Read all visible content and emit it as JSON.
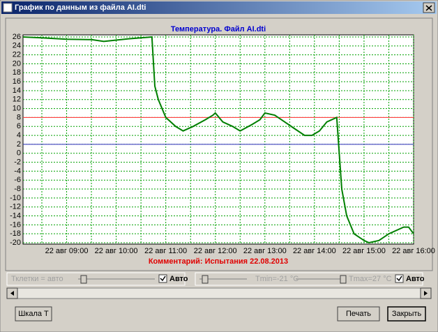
{
  "window": {
    "title": "График по данным из файла AI.dti"
  },
  "chart_data": {
    "type": "line",
    "title": "Температура. Файл AI.dti",
    "comment": "Комментарий: Испытания 22.08.2013",
    "x": [
      8.12,
      8.5,
      9.0,
      9.5,
      9.75,
      10.0,
      10.25,
      10.5,
      10.72,
      10.78,
      10.85,
      11.0,
      11.2,
      11.35,
      11.55,
      11.8,
      11.95,
      12.0,
      12.15,
      12.35,
      12.5,
      12.75,
      12.9,
      13.0,
      13.2,
      13.4,
      13.6,
      13.8,
      13.95,
      14.1,
      14.25,
      14.45,
      14.5,
      14.55,
      14.65,
      14.8,
      15.0,
      15.1,
      15.3,
      15.5,
      15.8,
      15.9,
      16.0
    ],
    "series": [
      {
        "name": "Температура",
        "color": "#007f00",
        "values": [
          26,
          25.8,
          25.5,
          25.4,
          25.0,
          25.3,
          25.6,
          25.8,
          26,
          15,
          12,
          8,
          6,
          5,
          6,
          7.5,
          8.5,
          9,
          7,
          6,
          5,
          6.5,
          7.5,
          9,
          8.5,
          7,
          5.5,
          4,
          4,
          5,
          7,
          8,
          0,
          -8,
          -14,
          -18,
          -19.5,
          -20,
          -19.5,
          -18,
          -16.5,
          -16.5,
          -18
        ]
      }
    ],
    "xlim": [
      8.12,
      16
    ],
    "xticks": [
      {
        "value": 9,
        "label": "22 авг 09:00"
      },
      {
        "value": 10,
        "label": "22 авг 10:00"
      },
      {
        "value": 11,
        "label": "22 авг 11:00"
      },
      {
        "value": 12,
        "label": "22 авг 12:00"
      },
      {
        "value": 13,
        "label": "22 авг 13:00"
      },
      {
        "value": 14,
        "label": "22 авг 14:00"
      },
      {
        "value": 15,
        "label": "22 авг 15:00"
      },
      {
        "value": 16,
        "label": "22 авг 16:00"
      }
    ],
    "x_minor_ticks": [
      8.5,
      9.5,
      10.5,
      11.5,
      12.5,
      13.5,
      14.5,
      15.5
    ],
    "ylim": [
      -20,
      26
    ],
    "yticks": [
      26,
      24,
      22,
      20,
      18,
      16,
      14,
      12,
      10,
      8,
      6,
      4,
      2,
      0,
      -2,
      -4,
      -6,
      -8,
      -10,
      -12,
      -14,
      -16,
      -18,
      -20
    ],
    "grid": true,
    "hlines": [
      {
        "value": 8,
        "color": "#ff4040"
      },
      {
        "value": 2,
        "color": "#4040c0"
      }
    ]
  },
  "controls": {
    "cell_label": "Тклетки = авто",
    "auto1": "Авто",
    "tmin": "Tmin=-21 °C",
    "tmax": "Tmax=27 °C",
    "auto2": "Авто"
  },
  "buttons": [
    "Шкала Т",
    "Печать",
    "Закрыть"
  ]
}
